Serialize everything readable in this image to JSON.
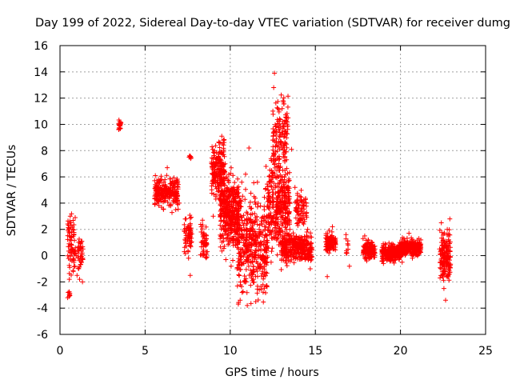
{
  "chart_data": {
    "type": "scatter",
    "title": "Day 199 of 2022, Sidereal Day-to-day VTEC variation (SDTVAR) for receiver dumg",
    "xlabel": "GPS time / hours",
    "ylabel": "SDTVAR / TECUs",
    "xlim": [
      0,
      25
    ],
    "ylim": [
      -6,
      16
    ],
    "xticks": [
      0,
      5,
      10,
      15,
      20,
      25
    ],
    "yticks": [
      -6,
      -4,
      -2,
      0,
      2,
      4,
      6,
      8,
      10,
      12,
      14,
      16
    ],
    "grid": true,
    "marker": "+",
    "color": "#ff0000",
    "series": [
      {
        "name": "dumg",
        "x": [
          0.45,
          0.48,
          0.5,
          0.52,
          0.55,
          0.58,
          0.6,
          0.62,
          0.65,
          0.68,
          0.7,
          0.72,
          0.75,
          0.78,
          0.8,
          0.82,
          0.85,
          0.88,
          0.9,
          0.95,
          1.0,
          1.05,
          1.1,
          1.15,
          1.2,
          1.25,
          1.3,
          1.32,
          1.35,
          3.45,
          3.5,
          3.52,
          3.55,
          3.58,
          5.6,
          5.7,
          5.8,
          5.9,
          6.0,
          6.1,
          6.2,
          6.3,
          6.4,
          6.5,
          6.6,
          6.7,
          6.8,
          6.9,
          7.0,
          7.4,
          7.45,
          7.5,
          7.55,
          7.6,
          7.62,
          7.65,
          7.7,
          8.3,
          8.35,
          8.4,
          8.45,
          8.5,
          8.55,
          8.6,
          9.0,
          9.1,
          9.2,
          9.3,
          9.4,
          9.5,
          9.55,
          9.6,
          9.7,
          9.8,
          9.9,
          10.0,
          10.05,
          10.1,
          10.2,
          10.3,
          10.4,
          10.5,
          10.6,
          10.7,
          10.8,
          10.9,
          11.0,
          11.05,
          11.1,
          11.2,
          11.3,
          11.4,
          11.5,
          11.6,
          11.7,
          11.8,
          11.9,
          12.0,
          12.1,
          12.2,
          12.3,
          12.4,
          12.5,
          12.55,
          12.6,
          12.65,
          12.7,
          12.8,
          12.9,
          13.0,
          13.1,
          13.2,
          13.3,
          13.4,
          13.5,
          13.6,
          13.7,
          13.8,
          13.9,
          14.0,
          14.1,
          14.2,
          14.3,
          14.4,
          14.5,
          14.6,
          14.7,
          14.8,
          15.7,
          15.8,
          15.9,
          16.0,
          16.1,
          16.8,
          16.9,
          17.0,
          17.8,
          17.9,
          18.0,
          18.1,
          18.2,
          18.3,
          18.4,
          18.5,
          19.0,
          19.1,
          19.2,
          19.3,
          19.4,
          19.5,
          19.6,
          19.7,
          19.8,
          19.9,
          20.0,
          20.1,
          20.2,
          20.3,
          20.4,
          20.5,
          20.6,
          20.7,
          20.8,
          20.9,
          21.0,
          21.1,
          21.2,
          22.3,
          22.4,
          22.45,
          22.5,
          22.55,
          22.6,
          22.65,
          22.7,
          22.75,
          22.8,
          22.85,
          22.9
        ],
        "y": [
          -3.2,
          -2.8,
          2.3,
          1.8,
          -1.8,
          2.6,
          3.0,
          1.2,
          0.8,
          0.2,
          -0.4,
          0.5,
          2.0,
          -1.2,
          0.3,
          -0.5,
          0.1,
          -0.8,
          0.6,
          0.0,
          -1.5,
          0.4,
          0.7,
          -1.8,
          0.9,
          1.1,
          0.2,
          -2.0,
          0.5,
          9.6,
          10.2,
          9.9,
          9.7,
          10.1,
          6.1,
          5.5,
          5.8,
          5.2,
          4.8,
          5.6,
          4.2,
          6.7,
          4.5,
          3.8,
          4.9,
          4.1,
          3.5,
          4.6,
          4.0,
          2.8,
          1.9,
          2.2,
          -0.2,
          1.5,
          7.5,
          -1.5,
          1.0,
          2.2,
          1.0,
          0.3,
          1.6,
          0.8,
          -0.1,
          1.3,
          3.0,
          6.8,
          6.2,
          7.5,
          8.6,
          9.1,
          4.2,
          8.8,
          3.5,
          6.0,
          2.1,
          4.8,
          -0.8,
          3.8,
          5.2,
          2.5,
          -1.0,
          3.0,
          4.2,
          -2.8,
          1.5,
          6.2,
          -3.8,
          0.8,
          8.2,
          2.5,
          -1.9,
          4.5,
          -3.5,
          5.6,
          2.0,
          0.5,
          -1.2,
          3.5,
          6.8,
          1.0,
          4.5,
          -0.5,
          8.8,
          12.8,
          13.9,
          2.5,
          9.5,
          11.2,
          6.5,
          3.0,
          11.8,
          7.5,
          9.3,
          10.5,
          2.0,
          8.1,
          1.0,
          5.2,
          4.0,
          0.8,
          4.5,
          0.2,
          3.8,
          -0.3,
          1.8,
          0.4,
          -1.0,
          0.6,
          -1.6,
          0.2,
          1.2,
          2.2,
          0.5,
          1.6,
          0.9,
          -0.8,
          1.3,
          1.5,
          0.4,
          1.2,
          -0.2,
          0.8,
          0.1,
          0.5,
          -0.6,
          0.9,
          0.3,
          0.6,
          0.0,
          0.9,
          0.2,
          -0.3,
          0.7,
          0.4,
          0.8,
          -0.5,
          1.3,
          0.1,
          0.9,
          1.7,
          0.3,
          -0.2,
          0.6,
          1.0,
          0.4,
          0.8,
          1.2,
          0.5,
          2.5,
          -1.5,
          0.8,
          -2.5,
          1.0,
          -3.4,
          0.3,
          2.0,
          -0.6,
          1.6,
          2.8
        ],
        "clusters": [
          {
            "x_range": [
              0.45,
              0.9
            ],
            "y_center": 1.0,
            "y_spread": 2.4,
            "count": 60
          },
          {
            "x_range": [
              0.5,
              0.6
            ],
            "y_center": -3.0,
            "y_spread": 0.4,
            "count": 8
          },
          {
            "x_range": [
              1.05,
              1.35
            ],
            "y_center": 0.2,
            "y_spread": 1.6,
            "count": 35
          },
          {
            "x_range": [
              3.45,
              3.58
            ],
            "y_center": 9.9,
            "y_spread": 0.35,
            "count": 14
          },
          {
            "x_range": [
              5.55,
              6.95
            ],
            "y_center": 4.9,
            "y_spread": 1.2,
            "count": 240
          },
          {
            "x_range": [
              7.3,
              7.75
            ],
            "y_center": 1.5,
            "y_spread": 1.3,
            "count": 60
          },
          {
            "x_range": [
              7.55,
              7.7
            ],
            "y_center": 7.5,
            "y_spread": 0.2,
            "count": 6
          },
          {
            "x_range": [
              8.25,
              8.65
            ],
            "y_center": 1.0,
            "y_spread": 1.2,
            "count": 45
          },
          {
            "x_range": [
              8.9,
              9.7
            ],
            "y_center": 6.5,
            "y_spread": 2.4,
            "count": 190
          },
          {
            "x_range": [
              9.4,
              10.5
            ],
            "y_center": 3.3,
            "y_spread": 2.8,
            "count": 380
          },
          {
            "x_range": [
              10.4,
              12.2
            ],
            "y_center": 0.8,
            "y_spread": 3.8,
            "count": 420
          },
          {
            "x_range": [
              12.2,
              13.5
            ],
            "y_center": 4.0,
            "y_spread": 3.6,
            "count": 360
          },
          {
            "x_range": [
              12.5,
              13.4
            ],
            "y_center": 9.5,
            "y_spread": 2.5,
            "count": 120
          },
          {
            "x_range": [
              13.0,
              14.8
            ],
            "y_center": 0.6,
            "y_spread": 1.1,
            "count": 330
          },
          {
            "x_range": [
              13.8,
              14.5
            ],
            "y_center": 3.5,
            "y_spread": 1.3,
            "count": 70
          },
          {
            "x_range": [
              15.6,
              16.2
            ],
            "y_center": 1.0,
            "y_spread": 0.8,
            "count": 110
          },
          {
            "x_range": [
              16.8,
              17.0
            ],
            "y_center": 0.6,
            "y_spread": 0.8,
            "count": 8
          },
          {
            "x_range": [
              17.8,
              18.5
            ],
            "y_center": 0.4,
            "y_spread": 0.7,
            "count": 130
          },
          {
            "x_range": [
              18.9,
              20.0
            ],
            "y_center": 0.2,
            "y_spread": 0.6,
            "count": 260
          },
          {
            "x_range": [
              20.0,
              21.2
            ],
            "y_center": 0.6,
            "y_spread": 0.6,
            "count": 260
          },
          {
            "x_range": [
              22.3,
              22.95
            ],
            "y_center": 0.0,
            "y_spread": 2.0,
            "count": 150
          }
        ]
      }
    ]
  }
}
